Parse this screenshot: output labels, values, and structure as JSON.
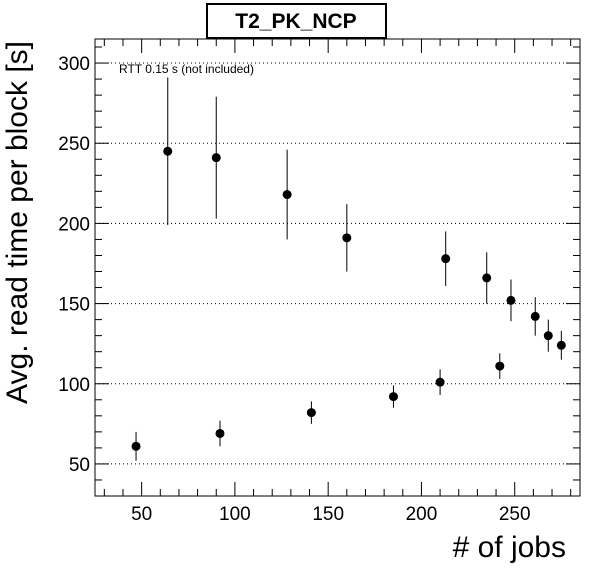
{
  "chart_data": {
    "type": "scatter",
    "title": "T2_PK_NCP",
    "xlabel": "# of jobs",
    "ylabel": "Avg. read time per block [s]",
    "annotation": "RTT 0.15 s (not included)",
    "xlim": [
      25,
      285
    ],
    "ylim": [
      30,
      315
    ],
    "x_ticks": [
      50,
      100,
      150,
      200,
      250
    ],
    "y_ticks": [
      50,
      100,
      150,
      200,
      250,
      300
    ],
    "grid": {
      "x": false,
      "y": true
    },
    "series": [
      {
        "points": [
          {
            "x": 47,
            "y": 61,
            "err": 9
          },
          {
            "x": 64,
            "y": 245,
            "err": 46
          },
          {
            "x": 90,
            "y": 241,
            "err": 38
          },
          {
            "x": 92,
            "y": 69,
            "err": 8
          },
          {
            "x": 128,
            "y": 218,
            "err": 28
          },
          {
            "x": 141,
            "y": 82,
            "err": 7
          },
          {
            "x": 160,
            "y": 191,
            "err": 21
          },
          {
            "x": 185,
            "y": 92,
            "err": 7
          },
          {
            "x": 210,
            "y": 101,
            "err": 8
          },
          {
            "x": 213,
            "y": 178,
            "err": 17
          },
          {
            "x": 235,
            "y": 166,
            "err": 16
          },
          {
            "x": 242,
            "y": 111,
            "err": 8
          },
          {
            "x": 248,
            "y": 152,
            "err": 13
          },
          {
            "x": 261,
            "y": 142,
            "err": 12
          },
          {
            "x": 268,
            "y": 130,
            "err": 10
          },
          {
            "x": 275,
            "y": 124,
            "err": 9
          }
        ]
      }
    ]
  }
}
